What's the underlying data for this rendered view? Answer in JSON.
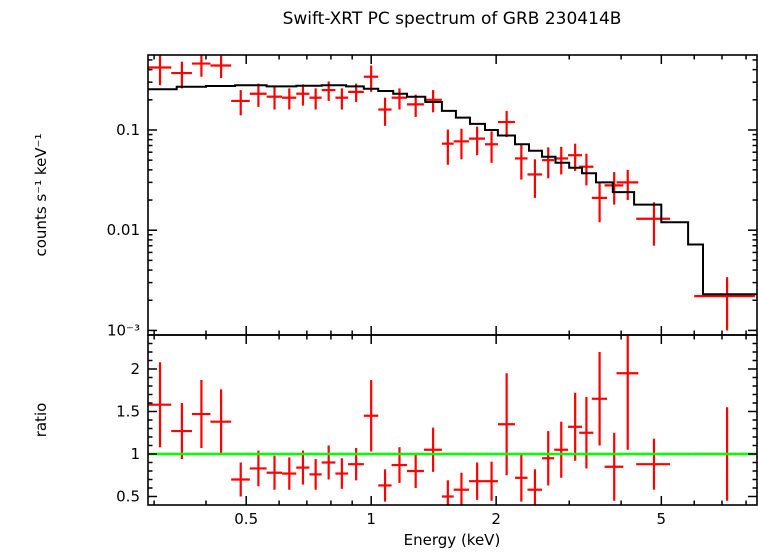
{
  "colors": {
    "data": "#ff0000",
    "model": "#000000",
    "unity_line": "#00ff00",
    "frame": "#000000",
    "background": "#ffffff"
  },
  "chart_data": [
    {
      "type": "scatter",
      "panel": "spectrum",
      "title": "Swift-XRT PC spectrum of GRB 230414B",
      "xlabel": "",
      "ylabel": "counts s⁻¹ keV⁻¹",
      "xscale": "log",
      "yscale": "log",
      "xlim": [
        0.29,
        8.5
      ],
      "ylim": [
        0.0009,
        0.56
      ],
      "grid": false,
      "legend": "none",
      "x_ticks": {
        "major": [
          0.5,
          1,
          2,
          5
        ],
        "labels": [
          "0.5",
          "1",
          "2",
          "5"
        ],
        "minor": [
          0.3,
          0.4,
          0.6,
          0.7,
          0.8,
          0.9,
          3,
          4,
          6,
          7,
          8
        ]
      },
      "y_ticks": {
        "major": [
          0.1,
          0.01,
          0.001
        ],
        "labels": [
          "0.1",
          "0.01",
          "10⁻³"
        ],
        "minor": [
          0.002,
          0.003,
          0.004,
          0.005,
          0.006,
          0.007,
          0.008,
          0.009,
          0.02,
          0.03,
          0.04,
          0.05,
          0.06,
          0.07,
          0.08,
          0.09,
          0.2,
          0.3,
          0.4,
          0.5
        ]
      },
      "series": [
        {
          "name": "observed counts",
          "style": "errorbar",
          "color": "#ff0000",
          "points": [
            [
              0.31,
              0.02,
              0.42,
              0.14
            ],
            [
              0.35,
              0.02,
              0.37,
              0.11
            ],
            [
              0.39,
              0.02,
              0.46,
              0.12
            ],
            [
              0.435,
              0.025,
              0.44,
              0.11
            ],
            [
              0.485,
              0.025,
              0.195,
              0.055
            ],
            [
              0.535,
              0.025,
              0.23,
              0.06
            ],
            [
              0.585,
              0.025,
              0.215,
              0.055
            ],
            [
              0.635,
              0.025,
              0.21,
              0.05
            ],
            [
              0.685,
              0.025,
              0.23,
              0.055
            ],
            [
              0.735,
              0.025,
              0.21,
              0.05
            ],
            [
              0.79,
              0.03,
              0.25,
              0.055
            ],
            [
              0.85,
              0.03,
              0.21,
              0.05
            ],
            [
              0.92,
              0.04,
              0.24,
              0.05
            ],
            [
              1.0,
              0.04,
              0.34,
              0.1
            ],
            [
              1.08,
              0.04,
              0.16,
              0.05
            ],
            [
              1.17,
              0.05,
              0.21,
              0.05
            ],
            [
              1.28,
              0.06,
              0.18,
              0.045
            ],
            [
              1.41,
              0.07,
              0.2,
              0.05
            ],
            [
              1.53,
              0.05,
              0.073,
              0.028
            ],
            [
              1.65,
              0.07,
              0.077,
              0.026
            ],
            [
              1.8,
              0.08,
              0.082,
              0.026
            ],
            [
              1.95,
              0.07,
              0.072,
              0.025
            ],
            [
              2.12,
              0.1,
              0.12,
              0.035
            ],
            [
              2.3,
              0.08,
              0.052,
              0.02
            ],
            [
              2.48,
              0.1,
              0.036,
              0.015
            ],
            [
              2.67,
              0.09,
              0.05,
              0.017
            ],
            [
              2.87,
              0.11,
              0.052,
              0.016
            ],
            [
              3.1,
              0.12,
              0.056,
              0.017
            ],
            [
              3.3,
              0.13,
              0.043,
              0.015
            ],
            [
              3.55,
              0.15,
              0.021,
              0.009
            ],
            [
              3.85,
              0.2,
              0.028,
              0.01
            ],
            [
              4.15,
              0.25,
              0.03,
              0.01
            ],
            [
              4.8,
              0.45,
              0.013,
              0.006
            ],
            [
              7.2,
              1.2,
              0.0022,
              0.0012
            ]
          ]
        },
        {
          "name": "folded model",
          "style": "step",
          "color": "#000000",
          "steps": [
            [
              0.29,
              0.34,
              0.255
            ],
            [
              0.34,
              0.4,
              0.27
            ],
            [
              0.4,
              0.47,
              0.275
            ],
            [
              0.47,
              0.56,
              0.28
            ],
            [
              0.56,
              0.66,
              0.272
            ],
            [
              0.66,
              0.76,
              0.276
            ],
            [
              0.76,
              0.87,
              0.28
            ],
            [
              0.87,
              0.96,
              0.272
            ],
            [
              0.96,
              1.04,
              0.258
            ],
            [
              1.04,
              1.13,
              0.245
            ],
            [
              1.13,
              1.22,
              0.23
            ],
            [
              1.22,
              1.35,
              0.215
            ],
            [
              1.35,
              1.48,
              0.19
            ],
            [
              1.48,
              1.6,
              0.155
            ],
            [
              1.6,
              1.73,
              0.133
            ],
            [
              1.73,
              1.88,
              0.115
            ],
            [
              1.88,
              2.02,
              0.1
            ],
            [
              2.02,
              2.22,
              0.088
            ],
            [
              2.22,
              2.4,
              0.072
            ],
            [
              2.4,
              2.58,
              0.062
            ],
            [
              2.58,
              2.78,
              0.054
            ],
            [
              2.78,
              3.0,
              0.047
            ],
            [
              3.0,
              3.22,
              0.042
            ],
            [
              3.22,
              3.48,
              0.037
            ],
            [
              3.48,
              3.82,
              0.03
            ],
            [
              3.82,
              4.3,
              0.024
            ],
            [
              4.3,
              5.0,
              0.018
            ],
            [
              5.0,
              5.8,
              0.012
            ],
            [
              5.8,
              6.3,
              0.0072
            ],
            [
              6.3,
              8.5,
              0.0023
            ]
          ]
        }
      ]
    },
    {
      "type": "scatter",
      "panel": "ratio",
      "title": "",
      "xlabel": "Energy (keV)",
      "ylabel": "ratio",
      "xscale": "log",
      "yscale": "linear",
      "xlim": [
        0.29,
        8.5
      ],
      "ylim": [
        0.4,
        2.4
      ],
      "grid": false,
      "legend": "none",
      "x_ticks": {
        "major": [
          0.5,
          1,
          2,
          5
        ],
        "labels": [
          "0.5",
          "1",
          "2",
          "5"
        ],
        "minor": [
          0.3,
          0.4,
          0.6,
          0.7,
          0.8,
          0.9,
          3,
          4,
          6,
          7,
          8
        ]
      },
      "y_ticks": {
        "major": [
          0.5,
          1,
          1.5,
          2
        ],
        "labels": [
          "0.5",
          "1",
          "1.5",
          "2"
        ],
        "minor": [
          0.6,
          0.7,
          0.8,
          0.9,
          1.1,
          1.2,
          1.3,
          1.4,
          1.6,
          1.7,
          1.8,
          1.9,
          2.1,
          2.2,
          2.3
        ]
      },
      "series": [
        {
          "name": "data/model ratio",
          "style": "errorbar",
          "color": "#ff0000",
          "points": [
            [
              0.31,
              0.02,
              1.58,
              0.5
            ],
            [
              0.35,
              0.02,
              1.27,
              0.33
            ],
            [
              0.39,
              0.02,
              1.47,
              0.4
            ],
            [
              0.435,
              0.025,
              1.38,
              0.38
            ],
            [
              0.485,
              0.025,
              0.7,
              0.2
            ],
            [
              0.535,
              0.025,
              0.83,
              0.21
            ],
            [
              0.585,
              0.025,
              0.78,
              0.2
            ],
            [
              0.635,
              0.025,
              0.77,
              0.19
            ],
            [
              0.685,
              0.025,
              0.84,
              0.2
            ],
            [
              0.735,
              0.025,
              0.76,
              0.18
            ],
            [
              0.79,
              0.03,
              0.9,
              0.2
            ],
            [
              0.85,
              0.03,
              0.77,
              0.18
            ],
            [
              0.92,
              0.04,
              0.88,
              0.19
            ],
            [
              1.0,
              0.04,
              1.45,
              0.42
            ],
            [
              1.08,
              0.04,
              0.63,
              0.19
            ],
            [
              1.17,
              0.05,
              0.87,
              0.21
            ],
            [
              1.28,
              0.06,
              0.8,
              0.2
            ],
            [
              1.41,
              0.07,
              1.05,
              0.26
            ],
            [
              1.53,
              0.05,
              0.5,
              0.19
            ],
            [
              1.65,
              0.07,
              0.58,
              0.2
            ],
            [
              1.8,
              0.08,
              0.68,
              0.22
            ],
            [
              1.95,
              0.07,
              0.68,
              0.23
            ],
            [
              2.12,
              0.1,
              1.35,
              0.6
            ],
            [
              2.3,
              0.08,
              0.72,
              0.28
            ],
            [
              2.48,
              0.1,
              0.58,
              0.24
            ],
            [
              2.67,
              0.09,
              0.95,
              0.32
            ],
            [
              2.87,
              0.11,
              1.05,
              0.33
            ],
            [
              3.1,
              0.12,
              1.32,
              0.4
            ],
            [
              3.3,
              0.13,
              1.25,
              0.42
            ],
            [
              3.55,
              0.15,
              1.65,
              0.55
            ],
            [
              3.85,
              0.2,
              0.85,
              0.4
            ],
            [
              4.15,
              0.25,
              1.95,
              0.9
            ],
            [
              4.8,
              0.45,
              0.88,
              0.3
            ],
            [
              7.2,
              1.2,
              1.0,
              0.55
            ]
          ]
        },
        {
          "name": "unity",
          "style": "hline",
          "color": "#00ff00",
          "y": 1
        }
      ]
    }
  ]
}
